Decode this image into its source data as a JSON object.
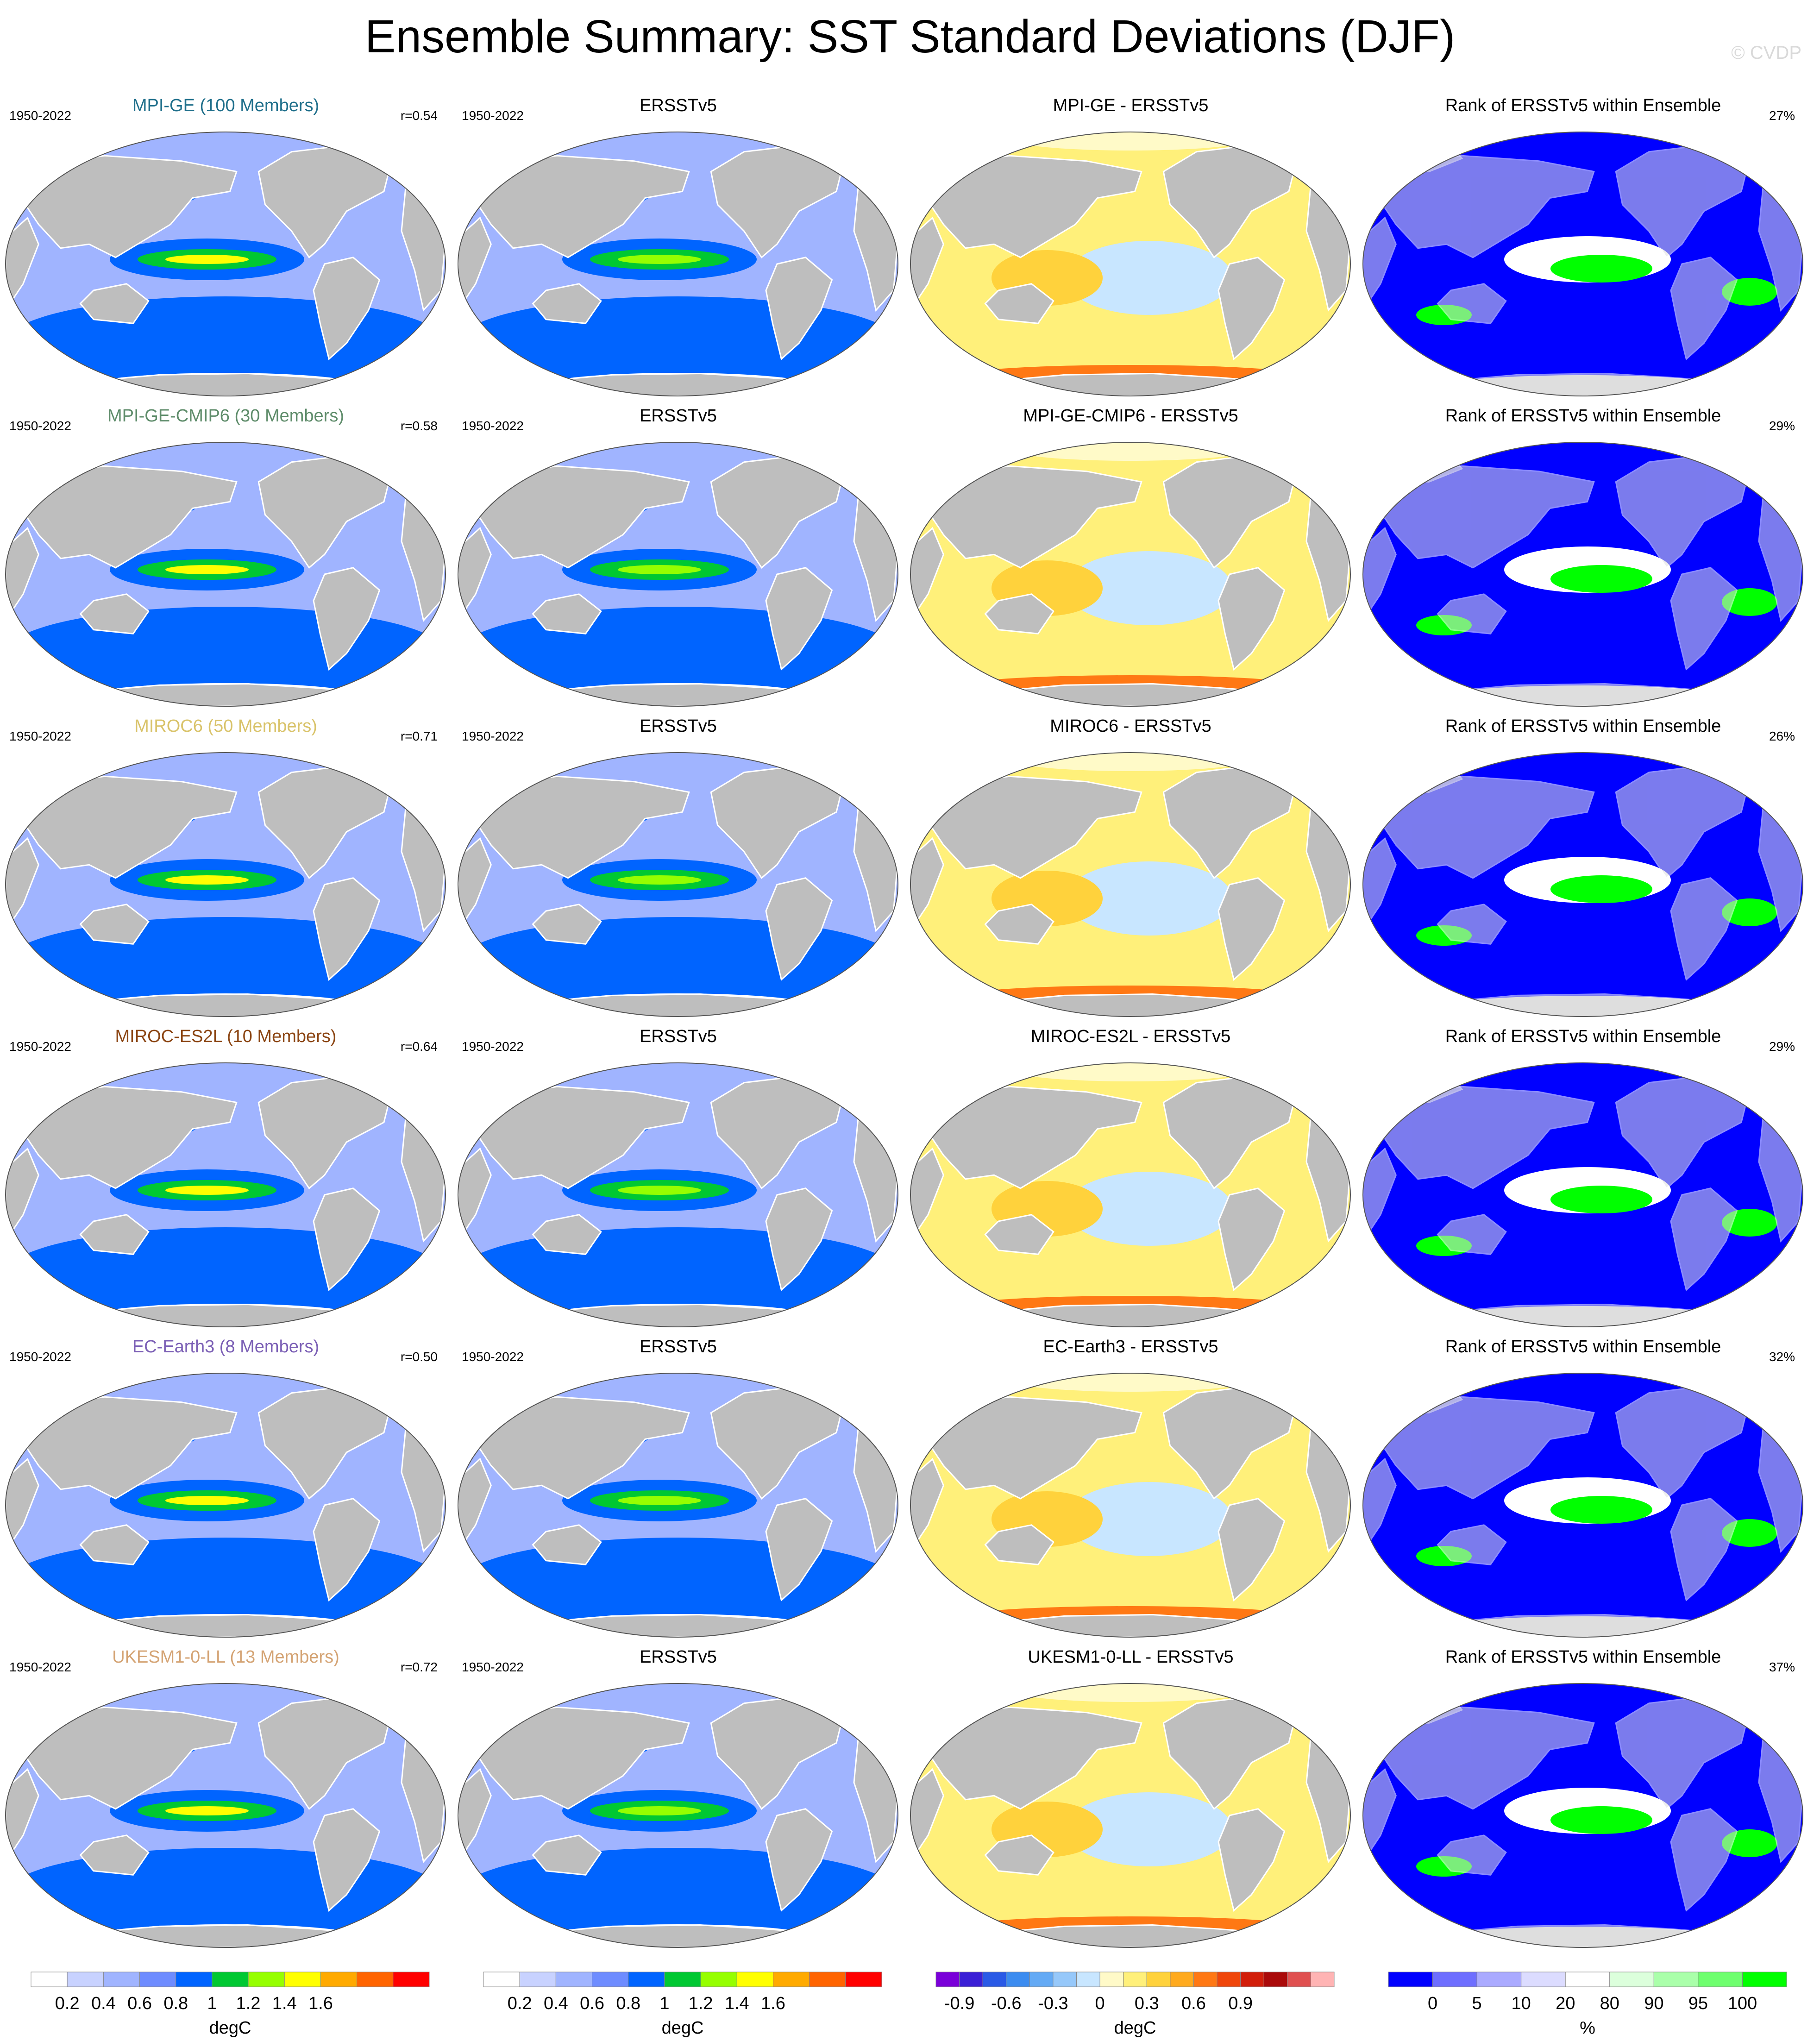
{
  "title": "Ensemble Summary: SST Standard Deviations (DJF)",
  "watermark": "© CVDP",
  "rows": [
    {
      "model": "MPI-GE (100 Members)",
      "model_color": "#1f6f8b",
      "years": "1950-2022",
      "r": "r=0.54",
      "obs_title": "ERSSTv5",
      "diff_title": "MPI-GE - ERSSTv5",
      "rank_title": "Rank of ERSSTv5 within Ensemble",
      "rank_pct": "27%"
    },
    {
      "model": "MPI-GE-CMIP6 (30 Members)",
      "model_color": "#5e8c6a",
      "years": "1950-2022",
      "r": "r=0.58",
      "obs_title": "ERSSTv5",
      "diff_title": "MPI-GE-CMIP6 - ERSSTv5",
      "rank_title": "Rank of ERSSTv5 within Ensemble",
      "rank_pct": "29%"
    },
    {
      "model": "MIROC6 (50 Members)",
      "model_color": "#d9c36a",
      "years": "1950-2022",
      "r": "r=0.71",
      "obs_title": "ERSSTv5",
      "diff_title": "MIROC6 - ERSSTv5",
      "rank_title": "Rank of ERSSTv5 within Ensemble",
      "rank_pct": "26%"
    },
    {
      "model": "MIROC-ES2L (10 Members)",
      "model_color": "#8b4513",
      "years": "1950-2022",
      "r": "r=0.64",
      "obs_title": "ERSSTv5",
      "diff_title": "MIROC-ES2L - ERSSTv5",
      "rank_title": "Rank of ERSSTv5 within Ensemble",
      "rank_pct": "29%"
    },
    {
      "model": "EC-Earth3 (8 Members)",
      "model_color": "#7b5fb5",
      "years": "1950-2022",
      "r": "r=0.50",
      "obs_title": "ERSSTv5",
      "diff_title": "EC-Earth3 - ERSSTv5",
      "rank_title": "Rank of ERSSTv5 within Ensemble",
      "rank_pct": "32%"
    },
    {
      "model": "UKESM1-0-LL (13 Members)",
      "model_color": "#d4a373",
      "years": "1950-2022",
      "r": "r=0.72",
      "obs_title": "ERSSTv5",
      "diff_title": "UKESM1-0-LL - ERSSTv5",
      "rank_title": "Rank of ERSSTv5 within Ensemble",
      "rank_pct": "37%"
    }
  ],
  "colorbars": {
    "std": {
      "unit": "degC",
      "labels": [
        "0.2",
        "0.4",
        "0.6",
        "0.8",
        "1",
        "1.2",
        "1.4",
        "1.6"
      ],
      "colors": [
        "#ffffff",
        "#c8d2ff",
        "#a0b4ff",
        "#6e8cff",
        "#0064ff",
        "#00c832",
        "#96ff00",
        "#ffff00",
        "#ffaa00",
        "#ff6400",
        "#ff0000"
      ]
    },
    "diff": {
      "unit": "degC",
      "labels": [
        "-0.9",
        "-0.6",
        "-0.3",
        "0",
        "0.3",
        "0.6",
        "0.9"
      ],
      "colors": [
        "#7a00d9",
        "#3a1fd6",
        "#2a5ae6",
        "#3c8cf0",
        "#64aaf5",
        "#96c8fa",
        "#c8e6ff",
        "#fffac8",
        "#fff07a",
        "#ffd23c",
        "#ffaa1e",
        "#ff7814",
        "#f0460a",
        "#d21e0a",
        "#aa0a0a",
        "#e05050",
        "#ffb4b4"
      ]
    },
    "rank": {
      "unit": "%",
      "labels": [
        "0",
        "5",
        "10",
        "20",
        "80",
        "90",
        "95",
        "100"
      ],
      "colors": [
        "#0000ff",
        "#6e6eff",
        "#aaaaff",
        "#dcdcff",
        "#ffffff",
        "#dcffdc",
        "#aaffaa",
        "#6eff6e",
        "#00ff00"
      ]
    }
  },
  "colors": {
    "land": "#bebebe",
    "background": "#ffffff"
  }
}
